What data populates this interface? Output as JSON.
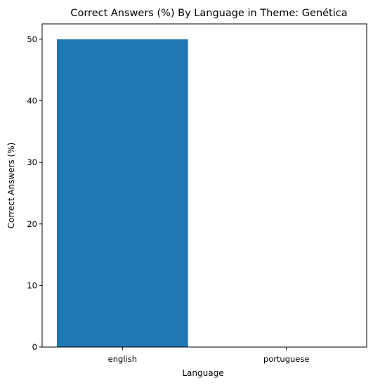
{
  "chart_data": {
    "type": "bar",
    "title": "Correct Answers (%) By Language in Theme: Genética",
    "xlabel": "Language",
    "ylabel": "Correct Answers (%)",
    "categories": [
      "english",
      "portuguese"
    ],
    "values": [
      50,
      0
    ],
    "ylim": [
      0,
      52.5
    ],
    "yticks": [
      0,
      10,
      20,
      30,
      40,
      50
    ],
    "bar_color": "#1f77b4",
    "grid": false,
    "legend": "none"
  }
}
